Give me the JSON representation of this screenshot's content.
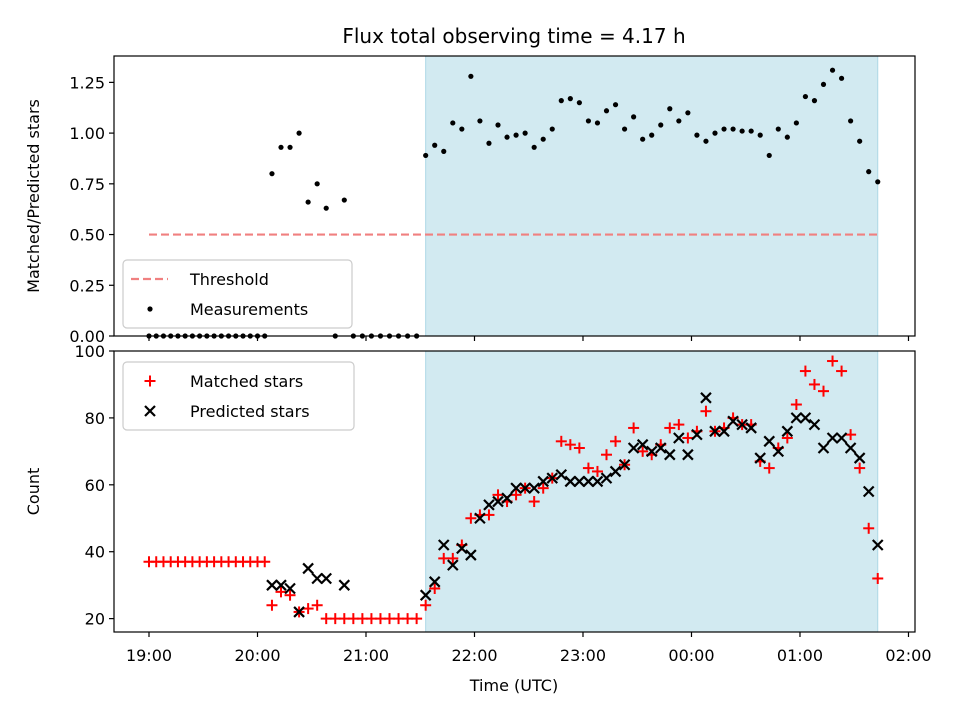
{
  "figure": {
    "title": "Flux total observing time = 4.17 h",
    "xlabel": "Time (UTC)",
    "x_ticks": [
      "19:00",
      "20:00",
      "21:00",
      "22:00",
      "23:00",
      "00:00",
      "01:00",
      "02:00"
    ],
    "observing_window": {
      "start": "21:33",
      "end": "01:43",
      "color": "#add8e6"
    }
  },
  "chart_data": [
    {
      "type": "scatter",
      "panel": "top",
      "ylabel": "Matched/Predicted stars",
      "ylim": [
        0,
        1.38
      ],
      "y_ticks": [
        "0.00",
        "0.25",
        "0.50",
        "0.75",
        "1.00",
        "1.25"
      ],
      "legend_position": "lower-left",
      "threshold": {
        "name": "Threshold",
        "value": 0.5,
        "x_range": [
          "19:00",
          "01:43"
        ],
        "color": "#f08080"
      },
      "series": [
        {
          "name": "Measurements",
          "color": "#000000",
          "points": [
            [
              "19:00",
              0
            ],
            [
              "19:04",
              0
            ],
            [
              "19:08",
              0
            ],
            [
              "19:12",
              0
            ],
            [
              "19:16",
              0
            ],
            [
              "19:20",
              0
            ],
            [
              "19:24",
              0
            ],
            [
              "19:28",
              0
            ],
            [
              "19:32",
              0
            ],
            [
              "19:36",
              0
            ],
            [
              "19:40",
              0
            ],
            [
              "19:44",
              0
            ],
            [
              "19:48",
              0
            ],
            [
              "19:52",
              0
            ],
            [
              "19:56",
              0
            ],
            [
              "20:00",
              0
            ],
            [
              "20:04",
              0
            ],
            [
              "20:08",
              0.8
            ],
            [
              "20:13",
              0.93
            ],
            [
              "20:18",
              0.93
            ],
            [
              "20:23",
              1.0
            ],
            [
              "20:28",
              0.66
            ],
            [
              "20:33",
              0.75
            ],
            [
              "20:38",
              0.63
            ],
            [
              "20:43",
              0
            ],
            [
              "20:48",
              0.67
            ],
            [
              "20:53",
              0
            ],
            [
              "20:58",
              0
            ],
            [
              "21:03",
              0
            ],
            [
              "21:08",
              0
            ],
            [
              "21:13",
              0
            ],
            [
              "21:18",
              0
            ],
            [
              "21:23",
              0
            ],
            [
              "21:28",
              0
            ],
            [
              "21:33",
              0.89
            ],
            [
              "21:38",
              0.94
            ],
            [
              "21:43",
              0.91
            ],
            [
              "21:48",
              1.05
            ],
            [
              "21:53",
              1.02
            ],
            [
              "21:58",
              1.28
            ],
            [
              "22:03",
              1.06
            ],
            [
              "22:08",
              0.95
            ],
            [
              "22:13",
              1.04
            ],
            [
              "22:18",
              0.98
            ],
            [
              "22:23",
              0.99
            ],
            [
              "22:28",
              1.0
            ],
            [
              "22:33",
              0.93
            ],
            [
              "22:38",
              0.97
            ],
            [
              "22:43",
              1.02
            ],
            [
              "22:48",
              1.16
            ],
            [
              "22:53",
              1.17
            ],
            [
              "22:58",
              1.15
            ],
            [
              "23:03",
              1.06
            ],
            [
              "23:08",
              1.05
            ],
            [
              "23:13",
              1.11
            ],
            [
              "23:18",
              1.14
            ],
            [
              "23:23",
              1.02
            ],
            [
              "23:28",
              1.08
            ],
            [
              "23:33",
              0.97
            ],
            [
              "23:38",
              0.99
            ],
            [
              "23:43",
              1.04
            ],
            [
              "23:48",
              1.12
            ],
            [
              "23:53",
              1.06
            ],
            [
              "23:58",
              1.1
            ],
            [
              "00:03",
              0.99
            ],
            [
              "00:08",
              0.96
            ],
            [
              "00:13",
              1.0
            ],
            [
              "00:18",
              1.02
            ],
            [
              "00:23",
              1.02
            ],
            [
              "00:28",
              1.01
            ],
            [
              "00:33",
              1.01
            ],
            [
              "00:38",
              0.99
            ],
            [
              "00:43",
              0.89
            ],
            [
              "00:48",
              1.02
            ],
            [
              "00:53",
              0.98
            ],
            [
              "00:58",
              1.05
            ],
            [
              "01:03",
              1.18
            ],
            [
              "01:08",
              1.16
            ],
            [
              "01:13",
              1.24
            ],
            [
              "01:18",
              1.31
            ],
            [
              "01:23",
              1.27
            ],
            [
              "01:28",
              1.06
            ],
            [
              "01:33",
              0.96
            ],
            [
              "01:38",
              0.81
            ],
            [
              "01:43",
              0.76
            ]
          ]
        }
      ]
    },
    {
      "type": "scatter",
      "panel": "bottom",
      "ylabel": "Count",
      "ylim": [
        16,
        100
      ],
      "y_ticks": [
        "20",
        "40",
        "60",
        "80",
        "100"
      ],
      "legend_position": "upper-left",
      "series": [
        {
          "name": "Matched stars",
          "marker": "+",
          "color": "#ff0000",
          "points": [
            [
              "19:00",
              37
            ],
            [
              "19:04",
              37
            ],
            [
              "19:08",
              37
            ],
            [
              "19:12",
              37
            ],
            [
              "19:16",
              37
            ],
            [
              "19:20",
              37
            ],
            [
              "19:24",
              37
            ],
            [
              "19:28",
              37
            ],
            [
              "19:32",
              37
            ],
            [
              "19:36",
              37
            ],
            [
              "19:40",
              37
            ],
            [
              "19:44",
              37
            ],
            [
              "19:48",
              37
            ],
            [
              "19:52",
              37
            ],
            [
              "19:56",
              37
            ],
            [
              "20:00",
              37
            ],
            [
              "20:04",
              37
            ],
            [
              "20:08",
              24
            ],
            [
              "20:13",
              28
            ],
            [
              "20:18",
              27
            ],
            [
              "20:23",
              22
            ],
            [
              "20:28",
              23
            ],
            [
              "20:33",
              24
            ],
            [
              "20:38",
              20
            ],
            [
              "20:43",
              20
            ],
            [
              "20:48",
              20
            ],
            [
              "20:53",
              20
            ],
            [
              "20:58",
              20
            ],
            [
              "21:03",
              20
            ],
            [
              "21:08",
              20
            ],
            [
              "21:13",
              20
            ],
            [
              "21:18",
              20
            ],
            [
              "21:23",
              20
            ],
            [
              "21:28",
              20
            ],
            [
              "21:33",
              24
            ],
            [
              "21:38",
              29
            ],
            [
              "21:43",
              38
            ],
            [
              "21:48",
              38
            ],
            [
              "21:53",
              42
            ],
            [
              "21:58",
              50
            ],
            [
              "22:03",
              51
            ],
            [
              "22:08",
              51
            ],
            [
              "22:13",
              57
            ],
            [
              "22:18",
              55
            ],
            [
              "22:23",
              57
            ],
            [
              "22:28",
              59
            ],
            [
              "22:33",
              55
            ],
            [
              "22:38",
              59
            ],
            [
              "22:43",
              62
            ],
            [
              "22:48",
              73
            ],
            [
              "22:53",
              72
            ],
            [
              "22:58",
              71
            ],
            [
              "23:03",
              65
            ],
            [
              "23:08",
              64
            ],
            [
              "23:13",
              69
            ],
            [
              "23:18",
              73
            ],
            [
              "23:23",
              66
            ],
            [
              "23:28",
              77
            ],
            [
              "23:33",
              70
            ],
            [
              "23:38",
              69
            ],
            [
              "23:43",
              72
            ],
            [
              "23:48",
              77
            ],
            [
              "23:53",
              78
            ],
            [
              "23:58",
              74
            ],
            [
              "00:03",
              76
            ],
            [
              "00:08",
              82
            ],
            [
              "00:13",
              76
            ],
            [
              "00:18",
              77
            ],
            [
              "00:23",
              80
            ],
            [
              "00:28",
              78
            ],
            [
              "00:33",
              78
            ],
            [
              "00:38",
              67
            ],
            [
              "00:43",
              65
            ],
            [
              "00:48",
              71
            ],
            [
              "00:53",
              74
            ],
            [
              "00:58",
              84
            ],
            [
              "01:03",
              94
            ],
            [
              "01:08",
              90
            ],
            [
              "01:13",
              88
            ],
            [
              "01:18",
              97
            ],
            [
              "01:23",
              94
            ],
            [
              "01:28",
              75
            ],
            [
              "01:33",
              65
            ],
            [
              "01:38",
              47
            ],
            [
              "01:43",
              32
            ]
          ]
        },
        {
          "name": "Predicted stars",
          "marker": "x",
          "color": "#000000",
          "points": [
            [
              "20:08",
              30
            ],
            [
              "20:13",
              30
            ],
            [
              "20:18",
              29
            ],
            [
              "20:23",
              22
            ],
            [
              "20:28",
              35
            ],
            [
              "20:33",
              32
            ],
            [
              "20:38",
              32
            ],
            [
              "20:48",
              30
            ],
            [
              "21:33",
              27
            ],
            [
              "21:38",
              31
            ],
            [
              "21:43",
              42
            ],
            [
              "21:48",
              36
            ],
            [
              "21:53",
              41
            ],
            [
              "21:58",
              39
            ],
            [
              "22:03",
              50
            ],
            [
              "22:08",
              54
            ],
            [
              "22:13",
              55
            ],
            [
              "22:18",
              56
            ],
            [
              "22:23",
              59
            ],
            [
              "22:28",
              59
            ],
            [
              "22:33",
              59
            ],
            [
              "22:38",
              61
            ],
            [
              "22:43",
              62
            ],
            [
              "22:48",
              63
            ],
            [
              "22:53",
              61
            ],
            [
              "22:58",
              61
            ],
            [
              "23:03",
              61
            ],
            [
              "23:08",
              61
            ],
            [
              "23:13",
              62
            ],
            [
              "23:18",
              64
            ],
            [
              "23:23",
              66
            ],
            [
              "23:28",
              71
            ],
            [
              "23:33",
              72
            ],
            [
              "23:38",
              70
            ],
            [
              "23:43",
              71
            ],
            [
              "23:48",
              69
            ],
            [
              "23:53",
              74
            ],
            [
              "23:58",
              69
            ],
            [
              "00:03",
              75
            ],
            [
              "00:08",
              86
            ],
            [
              "00:13",
              76
            ],
            [
              "00:18",
              76
            ],
            [
              "00:23",
              79
            ],
            [
              "00:28",
              78
            ],
            [
              "00:33",
              77
            ],
            [
              "00:38",
              68
            ],
            [
              "00:43",
              73
            ],
            [
              "00:48",
              70
            ],
            [
              "00:53",
              76
            ],
            [
              "00:58",
              80
            ],
            [
              "01:03",
              80
            ],
            [
              "01:08",
              78
            ],
            [
              "01:13",
              71
            ],
            [
              "01:18",
              74
            ],
            [
              "01:23",
              74
            ],
            [
              "01:28",
              71
            ],
            [
              "01:33",
              68
            ],
            [
              "01:38",
              58
            ],
            [
              "01:43",
              42
            ]
          ]
        }
      ]
    }
  ]
}
